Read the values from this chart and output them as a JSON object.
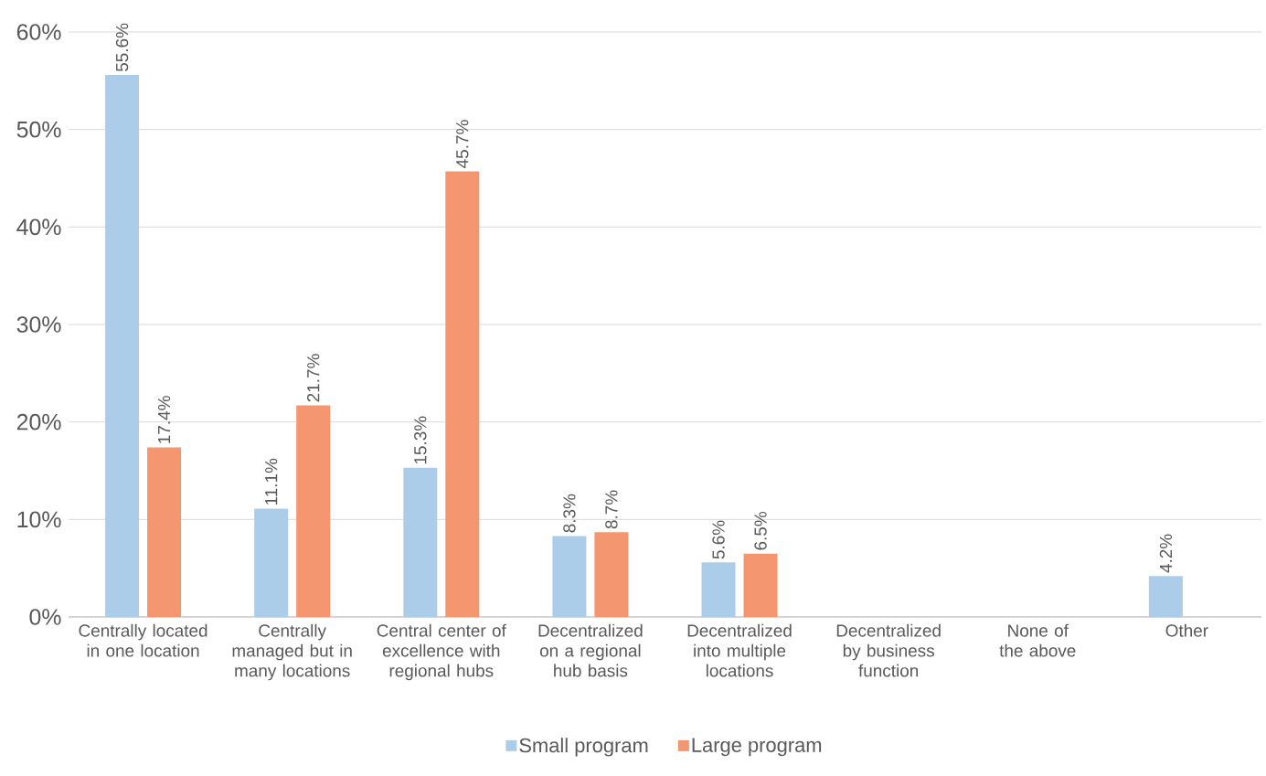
{
  "chart_data": {
    "type": "bar",
    "categories": [
      "Centrally located in one location",
      "Centrally managed but in many locations",
      "Central center of excellence with regional hubs",
      "Decentralized on a regional hub basis",
      "Decentralized into multiple locations",
      "Decentralized by business function",
      "None of the above",
      "Other"
    ],
    "series": [
      {
        "name": "Small program",
        "color": "#abcdea",
        "values": [
          55.6,
          11.1,
          15.3,
          8.3,
          5.6,
          null,
          null,
          4.2
        ],
        "value_labels": [
          "55.6%",
          "11.1%",
          "15.3%",
          "8.3%",
          "5.6%",
          null,
          null,
          "4.2%"
        ]
      },
      {
        "name": "Large program",
        "color": "#f4966f",
        "values": [
          17.4,
          21.7,
          45.7,
          8.7,
          6.5,
          null,
          null,
          null
        ],
        "value_labels": [
          "17.4%",
          "21.7%",
          "45.7%",
          "8.7%",
          "6.5%",
          null,
          null,
          null
        ]
      }
    ],
    "ylim": [
      0,
      60
    ],
    "yticks": [
      {
        "value": 0,
        "label": "0%"
      },
      {
        "value": 10,
        "label": "10%"
      },
      {
        "value": 20,
        "label": "20%"
      },
      {
        "value": 30,
        "label": "30%"
      },
      {
        "value": 40,
        "label": "40%"
      },
      {
        "value": 50,
        "label": "50%"
      },
      {
        "value": 60,
        "label": "60%"
      }
    ],
    "grid": "y",
    "legend": "bottom"
  }
}
